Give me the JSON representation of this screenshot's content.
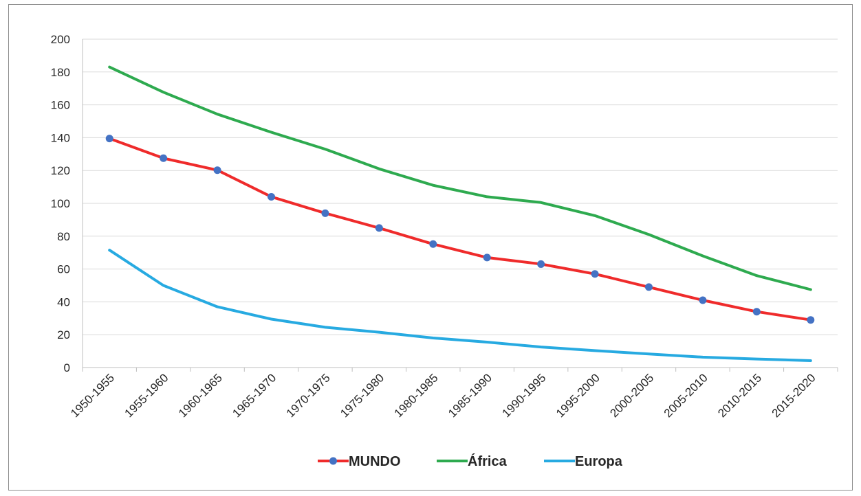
{
  "chart_data": {
    "type": "line",
    "title": "",
    "xlabel": "",
    "ylabel": "",
    "ylim": [
      0,
      200
    ],
    "ytick_step": 20,
    "yticks": [
      "0",
      "20",
      "40",
      "60",
      "80",
      "100",
      "120",
      "140",
      "160",
      "180",
      "200"
    ],
    "grid": true,
    "legend_position": "bottom",
    "categories": [
      "1950-1955",
      "1955-1960",
      "1960-1965",
      "1965-1970",
      "1970-1975",
      "1975-1980",
      "1980-1985",
      "1985-1990",
      "1990-1995",
      "1995-2000",
      "2000-2005",
      "2005-2010",
      "2010-2015",
      "2015-2020"
    ],
    "series": [
      {
        "name": "MUNDO",
        "color": "#ef2b2b",
        "marker": true,
        "marker_color": "#4472c4",
        "values": [
          139.5,
          127.5,
          120.2,
          104,
          94,
          85,
          75.2,
          67,
          63,
          57,
          49,
          41,
          34,
          29
        ]
      },
      {
        "name": "África",
        "color": "#2eaa4f",
        "marker": false,
        "values": [
          183,
          167.7,
          154.3,
          143.3,
          133,
          121,
          111,
          104,
          100.5,
          92.5,
          81,
          68,
          56,
          47.5
        ]
      },
      {
        "name": "Europa",
        "color": "#27aae1",
        "marker": false,
        "values": [
          71.5,
          50,
          37,
          29.5,
          24.5,
          21.5,
          18,
          15.5,
          12.5,
          10.3,
          8.3,
          6.3,
          5.2,
          4.2
        ]
      }
    ]
  }
}
